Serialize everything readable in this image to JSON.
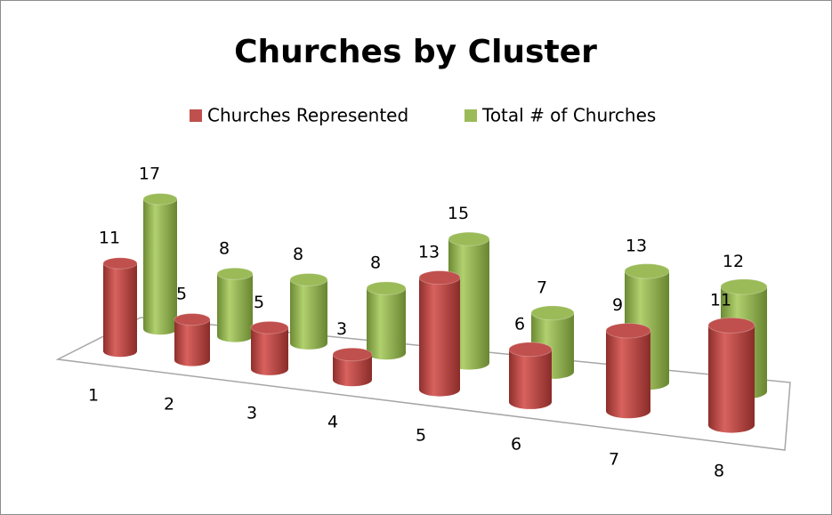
{
  "chart_data": {
    "type": "bar",
    "title": "Churches by Cluster",
    "categories": [
      "1",
      "2",
      "3",
      "4",
      "5",
      "6",
      "7",
      "8"
    ],
    "series": [
      {
        "name": "Churches Represented",
        "color": "#c0504d",
        "values": [
          11,
          5,
          5,
          3,
          13,
          6,
          9,
          11
        ]
      },
      {
        "name": "Total # of Churches",
        "color": "#9bbb59",
        "values": [
          17,
          8,
          8,
          8,
          15,
          7,
          13,
          12
        ]
      }
    ]
  }
}
